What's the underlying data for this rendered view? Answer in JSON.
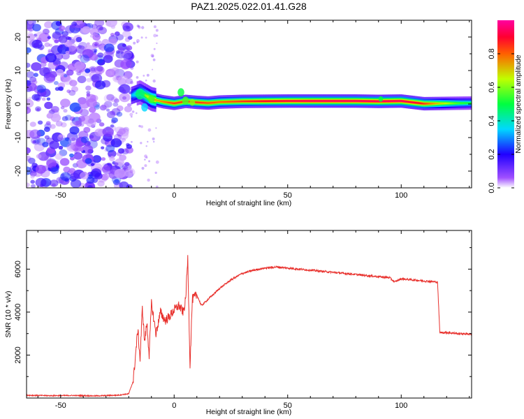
{
  "figure": {
    "title": "PAZ1.2025.022.01.41.G28"
  },
  "chart_data": [
    {
      "type": "heatmap",
      "xlabel": "Height of straight line (km)",
      "ylabel": "Frequency (Hz)",
      "xlim": [
        -65,
        131
      ],
      "ylim": [
        -25,
        25
      ],
      "x_ticks": [
        -50,
        0,
        50,
        100
      ],
      "y_ticks": [
        -20,
        -10,
        0,
        10,
        20
      ],
      "colorbar": {
        "label": "Normalized spectral amplitude",
        "range": [
          0,
          1
        ],
        "ticks": [
          "0.0",
          "0.2",
          "0.4",
          "0.6",
          "0.8"
        ],
        "colormap": "rainbow",
        "colors": [
          "#ffffff",
          "#8000ff",
          "#0000ff",
          "#00ffff",
          "#00ff00",
          "#ffff00",
          "#ff0000",
          "#ff00a0"
        ]
      },
      "noise_region_x": [
        -65,
        -19
      ],
      "ridge": {
        "frequency_hz": [
          [
            -19,
            2.5
          ],
          [
            -15,
            3.5
          ],
          [
            -10,
            1.5
          ],
          [
            -5,
            0.7
          ],
          [
            0,
            0.2
          ],
          [
            5,
            0.8
          ],
          [
            10,
            0.5
          ],
          [
            15,
            0.3
          ],
          [
            20,
            0.6
          ],
          [
            30,
            0.8
          ],
          [
            50,
            0.9
          ],
          [
            80,
            0.9
          ],
          [
            90,
            0.8
          ],
          [
            100,
            0.9
          ],
          [
            110,
            0.1
          ],
          [
            120,
            0.2
          ],
          [
            131,
            0.3
          ]
        ],
        "peak_amplitude": [
          [
            -19,
            0.3
          ],
          [
            -15,
            0.5
          ],
          [
            -10,
            0.7
          ],
          [
            0,
            0.85
          ],
          [
            10,
            0.85
          ],
          [
            20,
            0.8
          ],
          [
            30,
            0.85
          ],
          [
            40,
            0.9
          ],
          [
            60,
            0.95
          ],
          [
            80,
            0.95
          ],
          [
            90,
            0.95
          ],
          [
            100,
            0.95
          ],
          [
            108,
            0.9
          ],
          [
            117,
            0.7
          ],
          [
            125,
            0.55
          ],
          [
            131,
            0.5
          ]
        ]
      }
    },
    {
      "type": "line",
      "xlabel": "Height of straight line (km)",
      "ylabel": "SNR (10 * v/v)",
      "xlim": [
        -65,
        131
      ],
      "ylim": [
        0,
        7800
      ],
      "x_ticks": [
        -50,
        0,
        50,
        100
      ],
      "y_ticks": [
        2000,
        4000,
        6000
      ],
      "series": [
        {
          "color": "#e8302c",
          "x": [
            -65,
            -55,
            -45,
            -35,
            -25,
            -20,
            -18,
            -16,
            -15,
            -14,
            -13,
            -12,
            -11,
            -10,
            -8,
            -6,
            -4,
            -2,
            0,
            2,
            4,
            5,
            6,
            7,
            8,
            10,
            12,
            15,
            20,
            25,
            30,
            35,
            40,
            45,
            50,
            60,
            70,
            80,
            90,
            95,
            97,
            100,
            105,
            110,
            116,
            117,
            120,
            125,
            131
          ],
          "y": [
            130,
            110,
            120,
            100,
            130,
            200,
            800,
            3200,
            1800,
            4200,
            2600,
            3500,
            2000,
            4400,
            3000,
            4000,
            3600,
            3800,
            4100,
            4300,
            4000,
            4500,
            6500,
            1500,
            4600,
            4800,
            4300,
            4600,
            5100,
            5500,
            5800,
            5950,
            6050,
            6100,
            6050,
            5950,
            5850,
            5750,
            5650,
            5600,
            5400,
            5550,
            5500,
            5450,
            5400,
            3050,
            3050,
            3000,
            2980
          ]
        }
      ]
    }
  ]
}
